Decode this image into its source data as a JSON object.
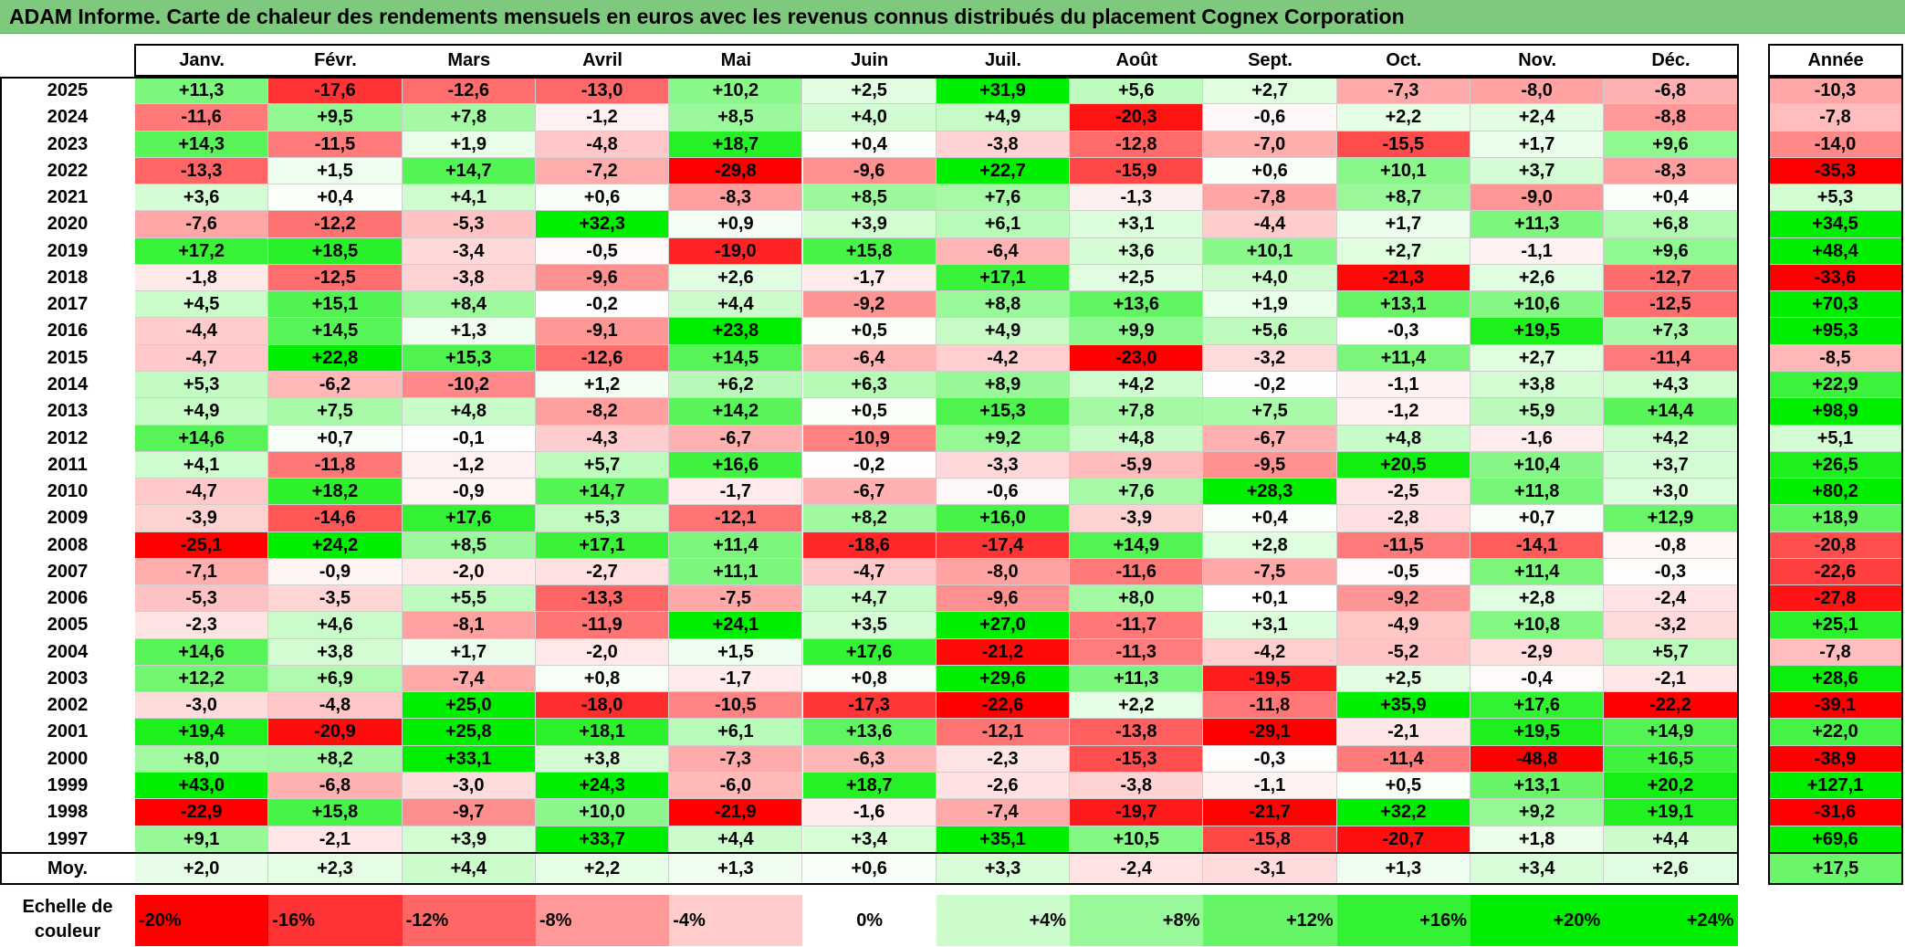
{
  "title": "ADAM Informe. Carte de chaleur des rendements mensuels en euros avec les revenus connus distribués du placement Cognex Corporation",
  "chart_data": {
    "type": "heatmap",
    "title": "ADAM Informe. Carte de chaleur des rendements mensuels en euros avec les revenus connus distribués du placement Cognex Corporation",
    "columns": [
      "Janv.",
      "Févr.",
      "Mars",
      "Avril",
      "Mai",
      "Juin",
      "Juil.",
      "Août",
      "Sept.",
      "Oct.",
      "Nov.",
      "Déc."
    ],
    "annual_header": "Année",
    "rows": [
      {
        "year": "2025",
        "values": [
          "+11,3",
          "-17,6",
          "-12,6",
          "-13,0",
          "+10,2",
          "+2,5",
          "+31,9",
          "+5,6",
          "+2,7",
          "-7,3",
          "-8,0",
          "-6,8"
        ],
        "annual": "-10,3"
      },
      {
        "year": "2024",
        "values": [
          "-11,6",
          "+9,5",
          "+7,8",
          "-1,2",
          "+8,5",
          "+4,0",
          "+4,9",
          "-20,3",
          "-0,6",
          "+2,2",
          "+2,4",
          "-8,8"
        ],
        "annual": "-7,8"
      },
      {
        "year": "2023",
        "values": [
          "+14,3",
          "-11,5",
          "+1,9",
          "-4,8",
          "+18,7",
          "+0,4",
          "-3,8",
          "-12,8",
          "-7,0",
          "-15,5",
          "+1,7",
          "+9,6"
        ],
        "annual": "-14,0"
      },
      {
        "year": "2022",
        "values": [
          "-13,3",
          "+1,5",
          "+14,7",
          "-7,2",
          "-29,8",
          "-9,6",
          "+22,7",
          "-15,9",
          "+0,6",
          "+10,1",
          "+3,7",
          "-8,3"
        ],
        "annual": "-35,3"
      },
      {
        "year": "2021",
        "values": [
          "+3,6",
          "+0,4",
          "+4,1",
          "+0,6",
          "-8,3",
          "+8,5",
          "+7,6",
          "-1,3",
          "-7,8",
          "+8,7",
          "-9,0",
          "+0,4"
        ],
        "annual": "+5,3"
      },
      {
        "year": "2020",
        "values": [
          "-7,6",
          "-12,2",
          "-5,3",
          "+32,3",
          "+0,9",
          "+3,9",
          "+6,1",
          "+3,1",
          "-4,4",
          "+1,7",
          "+11,3",
          "+6,8"
        ],
        "annual": "+34,5"
      },
      {
        "year": "2019",
        "values": [
          "+17,2",
          "+18,5",
          "-3,4",
          "-0,5",
          "-19,0",
          "+15,8",
          "-6,4",
          "+3,6",
          "+10,1",
          "+2,7",
          "-1,1",
          "+9,6"
        ],
        "annual": "+48,4"
      },
      {
        "year": "2018",
        "values": [
          "-1,8",
          "-12,5",
          "-3,8",
          "-9,6",
          "+2,6",
          "-1,7",
          "+17,1",
          "+2,5",
          "+4,0",
          "-21,3",
          "+2,6",
          "-12,7"
        ],
        "annual": "-33,6"
      },
      {
        "year": "2017",
        "values": [
          "+4,5",
          "+15,1",
          "+8,4",
          "-0,2",
          "+4,4",
          "-9,2",
          "+8,8",
          "+13,6",
          "+1,9",
          "+13,1",
          "+10,6",
          "-12,5"
        ],
        "annual": "+70,3"
      },
      {
        "year": "2016",
        "values": [
          "-4,4",
          "+14,5",
          "+1,3",
          "-9,1",
          "+23,8",
          "+0,5",
          "+4,9",
          "+9,9",
          "+5,6",
          "-0,3",
          "+19,5",
          "+7,3"
        ],
        "annual": "+95,3"
      },
      {
        "year": "2015",
        "values": [
          "-4,7",
          "+22,8",
          "+15,3",
          "-12,6",
          "+14,5",
          "-6,4",
          "-4,2",
          "-23,0",
          "-3,2",
          "+11,4",
          "+2,7",
          "-11,4"
        ],
        "annual": "-8,5"
      },
      {
        "year": "2014",
        "values": [
          "+5,3",
          "-6,2",
          "-10,2",
          "+1,2",
          "+6,2",
          "+6,3",
          "+8,9",
          "+4,2",
          "-0,2",
          "-1,1",
          "+3,8",
          "+4,3"
        ],
        "annual": "+22,9"
      },
      {
        "year": "2013",
        "values": [
          "+4,9",
          "+7,5",
          "+4,8",
          "-8,2",
          "+14,2",
          "+0,5",
          "+15,3",
          "+7,8",
          "+7,5",
          "-1,2",
          "+5,9",
          "+14,4"
        ],
        "annual": "+98,9"
      },
      {
        "year": "2012",
        "values": [
          "+14,6",
          "+0,7",
          "-0,1",
          "-4,3",
          "-6,7",
          "-10,9",
          "+9,2",
          "+4,8",
          "-6,7",
          "+4,8",
          "-1,6",
          "+4,2"
        ],
        "annual": "+5,1"
      },
      {
        "year": "2011",
        "values": [
          "+4,1",
          "-11,8",
          "-1,2",
          "+5,7",
          "+16,6",
          "-0,2",
          "-3,3",
          "-5,9",
          "-9,5",
          "+20,5",
          "+10,4",
          "+3,7"
        ],
        "annual": "+26,5"
      },
      {
        "year": "2010",
        "values": [
          "-4,7",
          "+18,2",
          "-0,9",
          "+14,7",
          "-1,7",
          "-6,7",
          "-0,6",
          "+7,6",
          "+28,3",
          "-2,5",
          "+11,8",
          "+3,0"
        ],
        "annual": "+80,2"
      },
      {
        "year": "2009",
        "values": [
          "-3,9",
          "-14,6",
          "+17,6",
          "+5,3",
          "-12,1",
          "+8,2",
          "+16,0",
          "-3,9",
          "+0,4",
          "-2,8",
          "+0,7",
          "+12,9"
        ],
        "annual": "+18,9"
      },
      {
        "year": "2008",
        "values": [
          "-25,1",
          "+24,2",
          "+8,5",
          "+17,1",
          "+11,4",
          "-18,6",
          "-17,4",
          "+14,9",
          "+2,8",
          "-11,5",
          "-14,1",
          "-0,8"
        ],
        "annual": "-20,8"
      },
      {
        "year": "2007",
        "values": [
          "-7,1",
          "-0,9",
          "-2,0",
          "-2,7",
          "+11,1",
          "-4,7",
          "-8,0",
          "-11,6",
          "-7,5",
          "-0,5",
          "+11,4",
          "-0,3"
        ],
        "annual": "-22,6"
      },
      {
        "year": "2006",
        "values": [
          "-5,3",
          "-3,5",
          "+5,5",
          "-13,3",
          "-7,5",
          "+4,7",
          "-9,6",
          "+8,0",
          "+0,1",
          "-9,2",
          "+2,8",
          "-2,4"
        ],
        "annual": "-27,8"
      },
      {
        "year": "2005",
        "values": [
          "-2,3",
          "+4,6",
          "-8,1",
          "-11,9",
          "+24,1",
          "+3,5",
          "+27,0",
          "-11,7",
          "+3,1",
          "-4,9",
          "+10,8",
          "-3,2"
        ],
        "annual": "+25,1"
      },
      {
        "year": "2004",
        "values": [
          "+14,6",
          "+3,8",
          "+1,7",
          "-2,0",
          "+1,5",
          "+17,6",
          "-21,2",
          "-11,3",
          "-4,2",
          "-5,2",
          "-2,9",
          "+5,7"
        ],
        "annual": "-7,8"
      },
      {
        "year": "2003",
        "values": [
          "+12,2",
          "+6,9",
          "-7,4",
          "+0,8",
          "-1,7",
          "+0,8",
          "+29,6",
          "+11,3",
          "-19,5",
          "+2,5",
          "-0,4",
          "-2,1"
        ],
        "annual": "+28,6"
      },
      {
        "year": "2002",
        "values": [
          "-3,0",
          "-4,8",
          "+25,0",
          "-18,0",
          "-10,5",
          "-17,3",
          "-22,6",
          "+2,2",
          "-11,8",
          "+35,9",
          "+17,6",
          "-22,2"
        ],
        "annual": "-39,1"
      },
      {
        "year": "2001",
        "values": [
          "+19,4",
          "-20,9",
          "+25,8",
          "+18,1",
          "+6,1",
          "+13,6",
          "-12,1",
          "-13,8",
          "-29,1",
          "-2,1",
          "+19,5",
          "+14,9"
        ],
        "annual": "+22,0"
      },
      {
        "year": "2000",
        "values": [
          "+8,0",
          "+8,2",
          "+33,1",
          "+3,8",
          "-7,3",
          "-6,3",
          "-2,3",
          "-15,3",
          "-0,3",
          "-11,4",
          "-48,8",
          "+16,5"
        ],
        "annual": "-38,9"
      },
      {
        "year": "1999",
        "values": [
          "+43,0",
          "-6,8",
          "-3,0",
          "+24,3",
          "-6,0",
          "+18,7",
          "-2,6",
          "-3,8",
          "-1,1",
          "+0,5",
          "+13,1",
          "+20,2"
        ],
        "annual": "+127,1"
      },
      {
        "year": "1998",
        "values": [
          "-22,9",
          "+15,8",
          "-9,7",
          "+10,0",
          "-21,9",
          "-1,6",
          "-7,4",
          "-19,7",
          "-21,7",
          "+32,2",
          "+9,2",
          "+19,1"
        ],
        "annual": "-31,6"
      },
      {
        "year": "1997",
        "values": [
          "+9,1",
          "-2,1",
          "+3,9",
          "+33,7",
          "+4,4",
          "+3,4",
          "+35,1",
          "+10,5",
          "-15,8",
          "-20,7",
          "+1,8",
          "+4,4"
        ],
        "annual": "+69,6"
      }
    ],
    "average": {
      "label": "Moy.",
      "values": [
        "+2,0",
        "+2,3",
        "+4,4",
        "+2,2",
        "+1,3",
        "+0,6",
        "+3,3",
        "-2,4",
        "-3,1",
        "+1,3",
        "+3,4",
        "+2,6"
      ],
      "annual": "+17,5"
    },
    "scale": {
      "label": "Echelle de couleur",
      "steps": [
        {
          "text": "-20%",
          "value": -20,
          "align": "left"
        },
        {
          "text": "-16%",
          "value": -16,
          "align": "left"
        },
        {
          "text": "-12%",
          "value": -12,
          "align": "left"
        },
        {
          "text": "-8%",
          "value": -8,
          "align": "left"
        },
        {
          "text": "-4%",
          "value": -4,
          "align": "left"
        },
        {
          "text": "0%",
          "value": 0,
          "align": "center"
        },
        {
          "text": "+4%",
          "value": 4,
          "align": "right"
        },
        {
          "text": "+8%",
          "value": 8,
          "align": "right"
        },
        {
          "text": "+12%",
          "value": 12,
          "align": "right"
        },
        {
          "text": "+16%",
          "value": 16,
          "align": "right"
        },
        {
          "text": "+20%",
          "value": 20,
          "align": "right"
        },
        {
          "text": "+24%",
          "value": 24,
          "align": "right"
        }
      ]
    },
    "colors": {
      "negative_max": "#ff0000",
      "neutral": "#ffffff",
      "positive_max": "#00ee00",
      "title_bar": "#7fc97f"
    }
  }
}
